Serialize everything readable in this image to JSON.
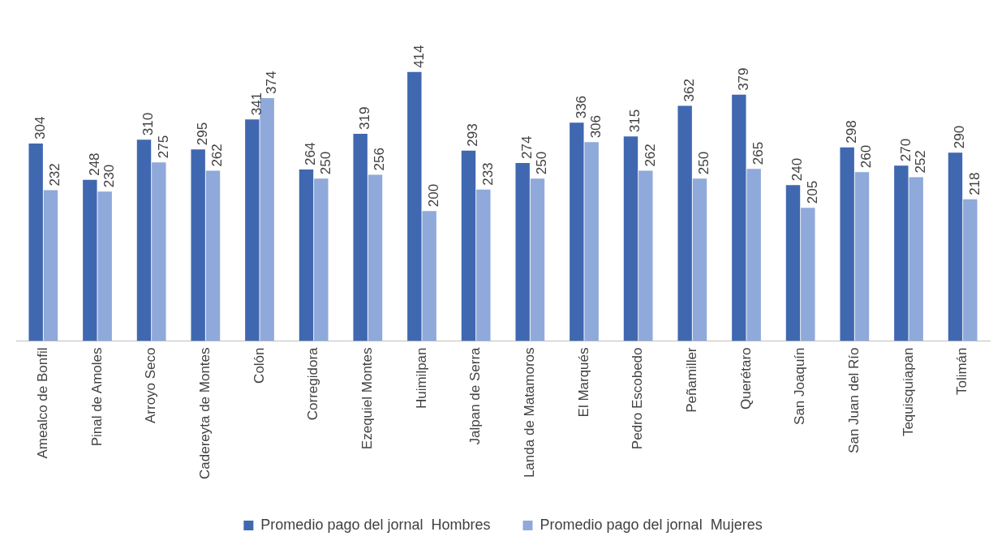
{
  "chart_data": {
    "type": "bar",
    "categories": [
      "Amealco de Bonfil",
      "Pinal de Amoles",
      "Arroyo Seco",
      "Cadereyta de Montes",
      "Colón",
      "Corregidora",
      "Ezequiel Montes",
      "Huimilpan",
      "Jalpan de Serra",
      "Landa de Matamoros",
      "El Marqués",
      "Pedro Escobedo",
      "Peñamiller",
      "Querétaro",
      "San Joaquín",
      "San Juan del Río",
      "Tequisquiapan",
      "Tolimán"
    ],
    "series": [
      {
        "name": "Promedio pago del jornal  Hombres",
        "color": "#4068b0",
        "values": [
          304,
          248,
          310,
          295,
          341,
          264,
          319,
          414,
          293,
          274,
          336,
          315,
          362,
          379,
          240,
          298,
          270,
          290
        ]
      },
      {
        "name": "Promedio pago del jornal  Mujeres",
        "color": "#8fa9da",
        "values": [
          232,
          230,
          275,
          262,
          374,
          250,
          256,
          200,
          233,
          250,
          306,
          262,
          250,
          265,
          205,
          260,
          252,
          218
        ]
      }
    ],
    "data_labels": true,
    "legend": "bottom",
    "grid": false
  }
}
